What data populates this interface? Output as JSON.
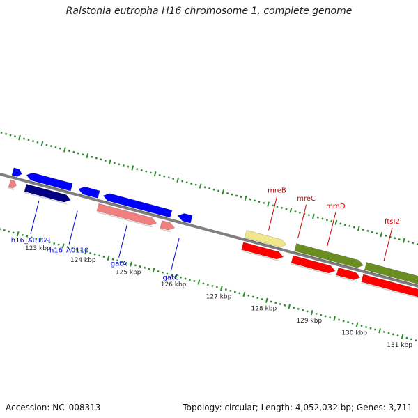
{
  "title": "Ralstonia eutropha H16 chromosome 1, complete genome",
  "footer": {
    "accession": "Accession: NC_008313",
    "meta": "Topology: circular; Length: 4,052,032 bp; Genes: 3,711"
  },
  "colors": {
    "backbone": "#808080",
    "tick_green": "#2e8b2e",
    "blue": "#0000ff",
    "navy": "#000080",
    "salmon": "#f08080",
    "khaki": "#f0e68c",
    "red": "#ff0000",
    "olive": "#6b8e23",
    "label_blue": "#0000cc",
    "label_red": "#cc0000"
  },
  "kbp_labels": [
    {
      "label": "123 kbp",
      "kb": 123
    },
    {
      "label": "124 kbp",
      "kb": 124
    },
    {
      "label": "125 kbp",
      "kb": 125
    },
    {
      "label": "126 kbp",
      "kb": 126
    },
    {
      "label": "127 kbp",
      "kb": 127
    },
    {
      "label": "128 kbp",
      "kb": 128
    },
    {
      "label": "129 kbp",
      "kb": 129
    },
    {
      "label": "130 kbp",
      "kb": 130
    },
    {
      "label": "131 kbp",
      "kb": 131
    }
  ],
  "features": [
    {
      "lane": 1,
      "start": 122.05,
      "end": 122.25,
      "strand": "+",
      "color": "blue"
    },
    {
      "lane": 1,
      "start": 122.35,
      "end": 123.35,
      "strand": "-",
      "color": "blue"
    },
    {
      "lane": 1,
      "start": 123.5,
      "end": 123.95,
      "strand": "-",
      "color": "blue"
    },
    {
      "lane": 1,
      "start": 124.05,
      "end": 125.55,
      "strand": "-",
      "color": "blue"
    },
    {
      "lane": 1,
      "start": 125.7,
      "end": 126.0,
      "strand": "-",
      "color": "blue"
    },
    {
      "lane": 1,
      "start": 127.2,
      "end": 128.1,
      "strand": "+",
      "color": "khaki"
    },
    {
      "lane": 1,
      "start": 128.3,
      "end": 129.8,
      "strand": "+",
      "color": "olive"
    },
    {
      "lane": 1,
      "start": 129.85,
      "end": 131.9,
      "strand": "+",
      "color": "olive"
    },
    {
      "lane": 2,
      "start": 122.05,
      "end": 122.2,
      "strand": "+",
      "color": "salmon"
    },
    {
      "lane": 2,
      "start": 122.4,
      "end": 123.4,
      "strand": "+",
      "color": "navy"
    },
    {
      "lane": 2,
      "start": 124.0,
      "end": 125.3,
      "strand": "+",
      "color": "salmon"
    },
    {
      "lane": 2,
      "start": 125.4,
      "end": 125.7,
      "strand": "+",
      "color": "salmon"
    },
    {
      "lane": 2,
      "start": 127.2,
      "end": 128.1,
      "strand": "+",
      "color": "red"
    },
    {
      "lane": 2,
      "start": 128.3,
      "end": 129.25,
      "strand": "+",
      "color": "red"
    },
    {
      "lane": 2,
      "start": 129.3,
      "end": 129.8,
      "strand": "+",
      "color": "red"
    },
    {
      "lane": 2,
      "start": 129.85,
      "end": 131.9,
      "strand": "+",
      "color": "red"
    }
  ],
  "gene_labels": [
    {
      "name": "h16_A0109",
      "kb": 122.75,
      "side": "below",
      "color": "label_blue"
    },
    {
      "name": "h16_A0110",
      "kb": 123.6,
      "side": "below",
      "color": "label_blue"
    },
    {
      "name": "gatA",
      "kb": 124.7,
      "side": "below",
      "color": "label_blue"
    },
    {
      "name": "gatC",
      "kb": 125.85,
      "side": "below",
      "color": "label_blue"
    },
    {
      "name": "mreB",
      "kb": 127.65,
      "side": "above",
      "color": "label_red"
    },
    {
      "name": "mreC",
      "kb": 128.3,
      "side": "above",
      "color": "label_red"
    },
    {
      "name": "mreD",
      "kb": 128.95,
      "side": "above",
      "color": "label_red"
    },
    {
      "name": "ftsI2",
      "kb": 130.2,
      "side": "above",
      "color": "label_red"
    }
  ]
}
